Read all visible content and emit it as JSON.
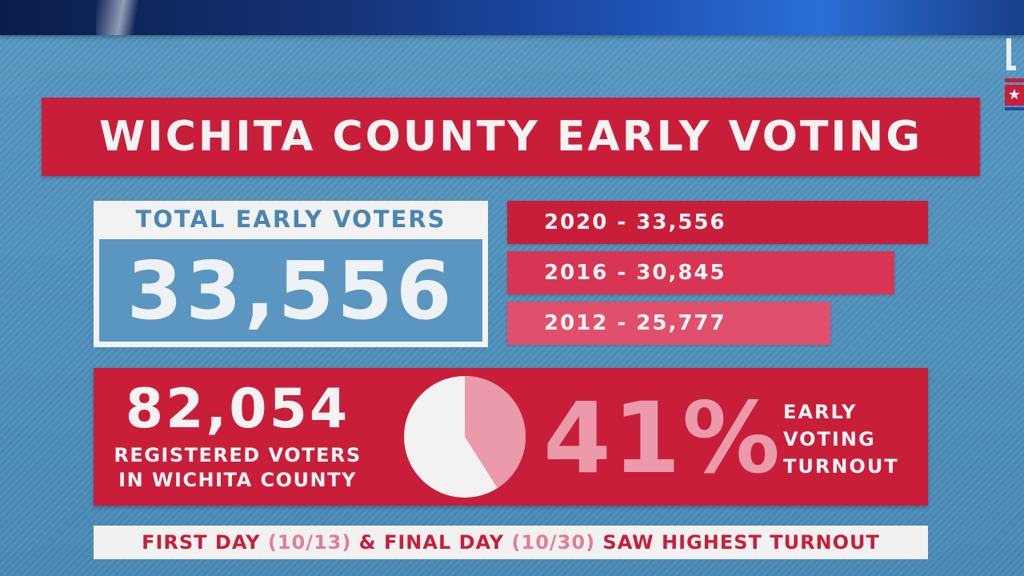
{
  "title": "WICHITA COUNTY EARLY VOTING",
  "colors": {
    "red": "#c81e3a",
    "red_mid": "#d73553",
    "red_light": "#e0506c",
    "pink": "#ea9aab",
    "blue": "#5a96c0",
    "white": "#f2f2f2"
  },
  "total": {
    "label": "TOTAL EARLY VOTERS",
    "value": "33,556"
  },
  "chart_data": {
    "type": "bar",
    "orientation": "horizontal",
    "categories": [
      "2020",
      "2016",
      "2012"
    ],
    "values": [
      33556,
      30845,
      25777
    ],
    "labels": [
      "2020 - 33,556",
      "2016 - 30,845",
      "2012 - 25,777"
    ]
  },
  "registered": {
    "value": "82,054",
    "caption_line1": "REGISTERED VOTERS",
    "caption_line2": "IN WICHITA COUNTY"
  },
  "turnout": {
    "percent_label": "41%",
    "fraction": 0.41,
    "caption_line1": "EARLY",
    "caption_line2": "VOTING",
    "caption_line3": "TURNOUT"
  },
  "footer": {
    "part1": "FIRST DAY ",
    "date1": "(10/13)",
    "part2": " & FINAL DAY ",
    "date2": "(10/30)",
    "part3": " SAW HIGHEST TURNOUT"
  }
}
